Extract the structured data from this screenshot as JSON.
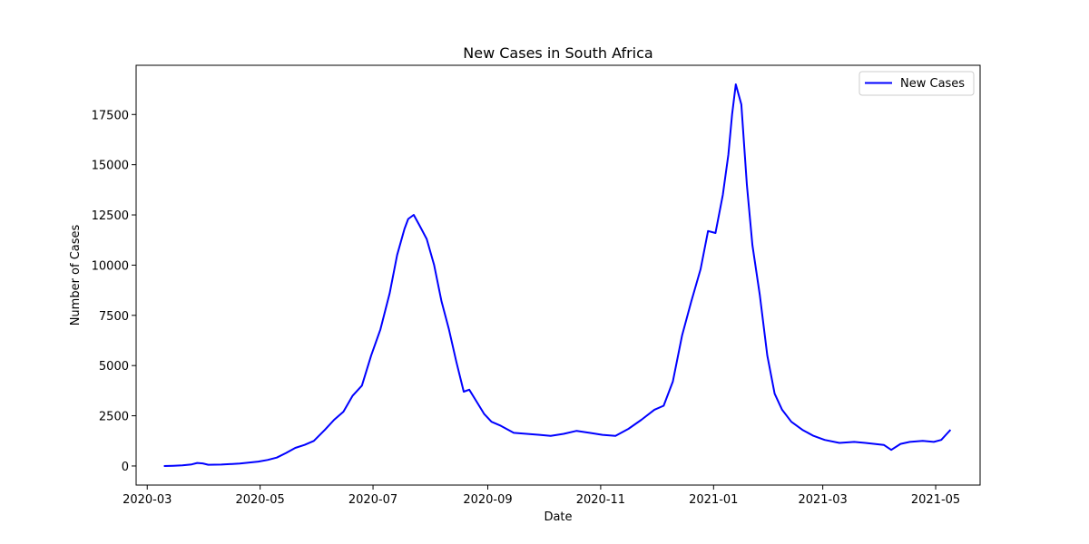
{
  "chart_data": {
    "type": "line",
    "title": "New Cases in South Africa",
    "xlabel": "Date",
    "ylabel": "Number of Cases",
    "x_axis": {
      "type": "date",
      "range": [
        "2020-02-24",
        "2021-05-25"
      ],
      "ticks": [
        "2020-03-01",
        "2020-05-01",
        "2020-07-01",
        "2020-09-01",
        "2020-11-01",
        "2021-01-01",
        "2021-03-01",
        "2021-05-01"
      ],
      "tick_labels": [
        "2020-03",
        "2020-05",
        "2020-07",
        "2020-09",
        "2020-11",
        "2021-01",
        "2021-03",
        "2021-05"
      ]
    },
    "y_axis": {
      "range": [
        -950,
        19950
      ],
      "ticks": [
        0,
        2500,
        5000,
        7500,
        10000,
        12500,
        15000,
        17500
      ],
      "tick_labels": [
        "0",
        "2500",
        "5000",
        "7500",
        "10000",
        "12500",
        "15000",
        "17500"
      ]
    },
    "grid": false,
    "legend": {
      "position": "top-right",
      "entries": [
        "New Cases"
      ]
    },
    "colors": {
      "New Cases": "#0000ff"
    },
    "series": [
      {
        "name": "New Cases",
        "x": [
          "2020-03-10",
          "2020-03-15",
          "2020-03-20",
          "2020-03-25",
          "2020-03-28",
          "2020-03-31",
          "2020-04-03",
          "2020-04-10",
          "2020-04-20",
          "2020-04-30",
          "2020-05-05",
          "2020-05-10",
          "2020-05-15",
          "2020-05-20",
          "2020-05-25",
          "2020-05-30",
          "2020-06-05",
          "2020-06-10",
          "2020-06-15",
          "2020-06-20",
          "2020-06-25",
          "2020-06-30",
          "2020-07-05",
          "2020-07-10",
          "2020-07-14",
          "2020-07-18",
          "2020-07-20",
          "2020-07-23",
          "2020-07-26",
          "2020-07-30",
          "2020-08-03",
          "2020-08-07",
          "2020-08-11",
          "2020-08-15",
          "2020-08-19",
          "2020-08-22",
          "2020-08-26",
          "2020-08-30",
          "2020-09-03",
          "2020-09-08",
          "2020-09-15",
          "2020-09-22",
          "2020-09-29",
          "2020-10-05",
          "2020-10-12",
          "2020-10-19",
          "2020-10-26",
          "2020-11-02",
          "2020-11-09",
          "2020-11-16",
          "2020-11-23",
          "2020-11-30",
          "2020-12-05",
          "2020-12-10",
          "2020-12-15",
          "2020-12-20",
          "2020-12-25",
          "2020-12-29",
          "2021-01-02",
          "2021-01-06",
          "2021-01-09",
          "2021-01-11",
          "2021-01-13",
          "2021-01-16",
          "2021-01-19",
          "2021-01-22",
          "2021-01-26",
          "2021-01-30",
          "2021-02-03",
          "2021-02-07",
          "2021-02-12",
          "2021-02-18",
          "2021-02-24",
          "2021-03-02",
          "2021-03-10",
          "2021-03-18",
          "2021-03-24",
          "2021-03-29",
          "2021-04-03",
          "2021-04-07",
          "2021-04-12",
          "2021-04-17",
          "2021-04-24",
          "2021-04-30",
          "2021-05-04",
          "2021-05-07",
          "2021-05-09"
        ],
        "values": [
          0,
          10,
          30,
          80,
          150,
          130,
          60,
          70,
          120,
          220,
          300,
          420,
          650,
          900,
          1050,
          1250,
          1800,
          2300,
          2700,
          3500,
          4000,
          5500,
          6800,
          8600,
          10500,
          11800,
          12300,
          12500,
          12000,
          11300,
          10000,
          8200,
          6800,
          5200,
          3700,
          3800,
          3200,
          2600,
          2200,
          2000,
          1650,
          1600,
          1550,
          1500,
          1600,
          1750,
          1650,
          1550,
          1500,
          1850,
          2300,
          2800,
          3000,
          4200,
          6500,
          8200,
          9800,
          11700,
          11600,
          13500,
          15500,
          17500,
          19000,
          18000,
          14000,
          11000,
          8500,
          5500,
          3600,
          2800,
          2200,
          1800,
          1500,
          1300,
          1150,
          1200,
          1150,
          1100,
          1050,
          800,
          1100,
          1200,
          1250,
          1200,
          1300,
          1600,
          1800
        ]
      }
    ]
  }
}
